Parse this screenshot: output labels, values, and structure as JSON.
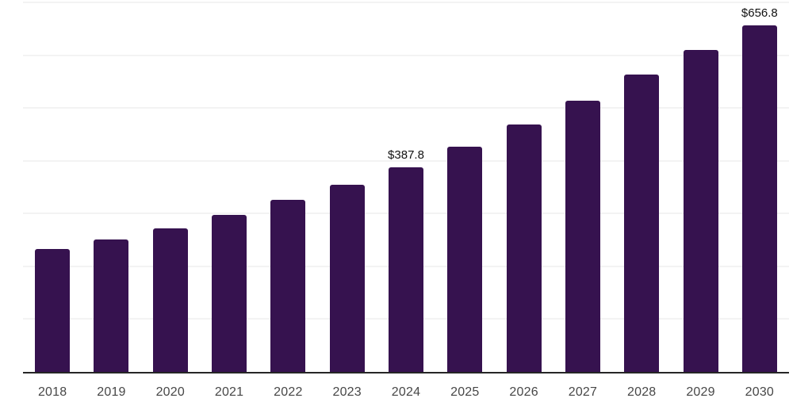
{
  "chart_data": {
    "type": "bar",
    "title": "",
    "xlabel": "",
    "ylabel": "",
    "legend": "none",
    "grid": true,
    "grid_step": 100,
    "ylim": [
      0,
      700
    ],
    "value_prefix": "$",
    "categories": [
      "2018",
      "2019",
      "2020",
      "2021",
      "2022",
      "2023",
      "2024",
      "2025",
      "2026",
      "2027",
      "2028",
      "2029",
      "2030"
    ],
    "values": [
      232.1,
      250.7,
      272.6,
      296.7,
      325.8,
      355.2,
      387.8,
      427.3,
      469.3,
      513.9,
      563.4,
      609.5,
      656.8
    ],
    "data_labels": [
      "",
      "",
      "",
      "",
      "",
      "",
      "$387.8",
      "",
      "",
      "",
      "",
      "",
      "$656.8"
    ],
    "colors": {
      "bar": "#36124F",
      "gridline": "#F3F3F3",
      "axis_line": "#262626",
      "tick_label": "#474747",
      "data_label": "#111111",
      "background": "#FFFFFF"
    }
  }
}
